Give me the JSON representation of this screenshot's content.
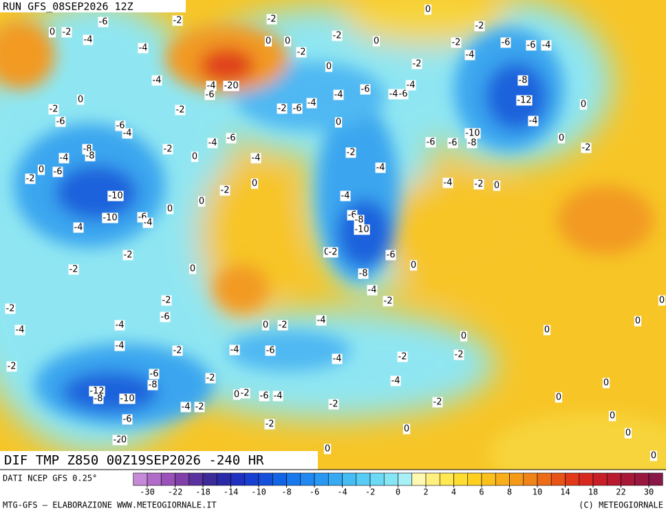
{
  "header": {
    "run": "RUN GFS_08SEP2026 12Z"
  },
  "map": {
    "title": "DIF TMP Z850 00Z19SEP2026 -240 HR",
    "contour_labels": [
      -6,
      -2,
      -2,
      0,
      -2,
      0,
      -2,
      -4,
      -4,
      0,
      0,
      -2,
      -2,
      0,
      -2,
      -4,
      -6,
      -6,
      -4,
      -2,
      0,
      -4,
      -4,
      -20,
      -6,
      0,
      -6,
      -4,
      -4,
      -6,
      -4,
      -8,
      -12,
      0,
      -2,
      -2,
      -2,
      -6,
      -4,
      -6,
      -6,
      -4,
      0,
      -4,
      -10,
      -8,
      -6,
      -6,
      -6,
      -4,
      0,
      -2,
      -8,
      -8,
      -2,
      0,
      -4,
      -2,
      -4,
      0,
      -2,
      -6,
      -4,
      -4,
      -2,
      0,
      0,
      -2,
      -10,
      0,
      0,
      -4,
      -10,
      -6,
      -4,
      -4,
      -6,
      -8,
      -10,
      0,
      -2,
      -6,
      0,
      -2,
      0,
      -2,
      -8,
      -4,
      -2,
      -2,
      -2,
      -6,
      -4,
      0,
      -2,
      -4,
      -4,
      0,
      0,
      0,
      -4,
      -2,
      -4,
      -6,
      -4,
      -2,
      -2,
      -2,
      -6,
      -8,
      -2,
      -4,
      0,
      -12,
      -8,
      -10,
      0,
      -2,
      -6,
      -4,
      0,
      -2,
      -2,
      -4,
      -2,
      -6,
      0,
      -2,
      0,
      0,
      -2,
      0,
      0,
      0,
      0
    ]
  },
  "colorbar": {
    "source": "DATI NCEP GFS 0.25°",
    "ticks": [
      -30,
      -22,
      -18,
      -14,
      -10,
      -8,
      -6,
      -4,
      -2,
      0,
      2,
      4,
      6,
      8,
      10,
      14,
      18,
      22,
      30
    ]
  },
  "footer": {
    "left": "MTG-GFS — ELABORAZIONE WWW.METEOGIORNALE.IT",
    "right": "(C) METEOGIORNALE"
  }
}
